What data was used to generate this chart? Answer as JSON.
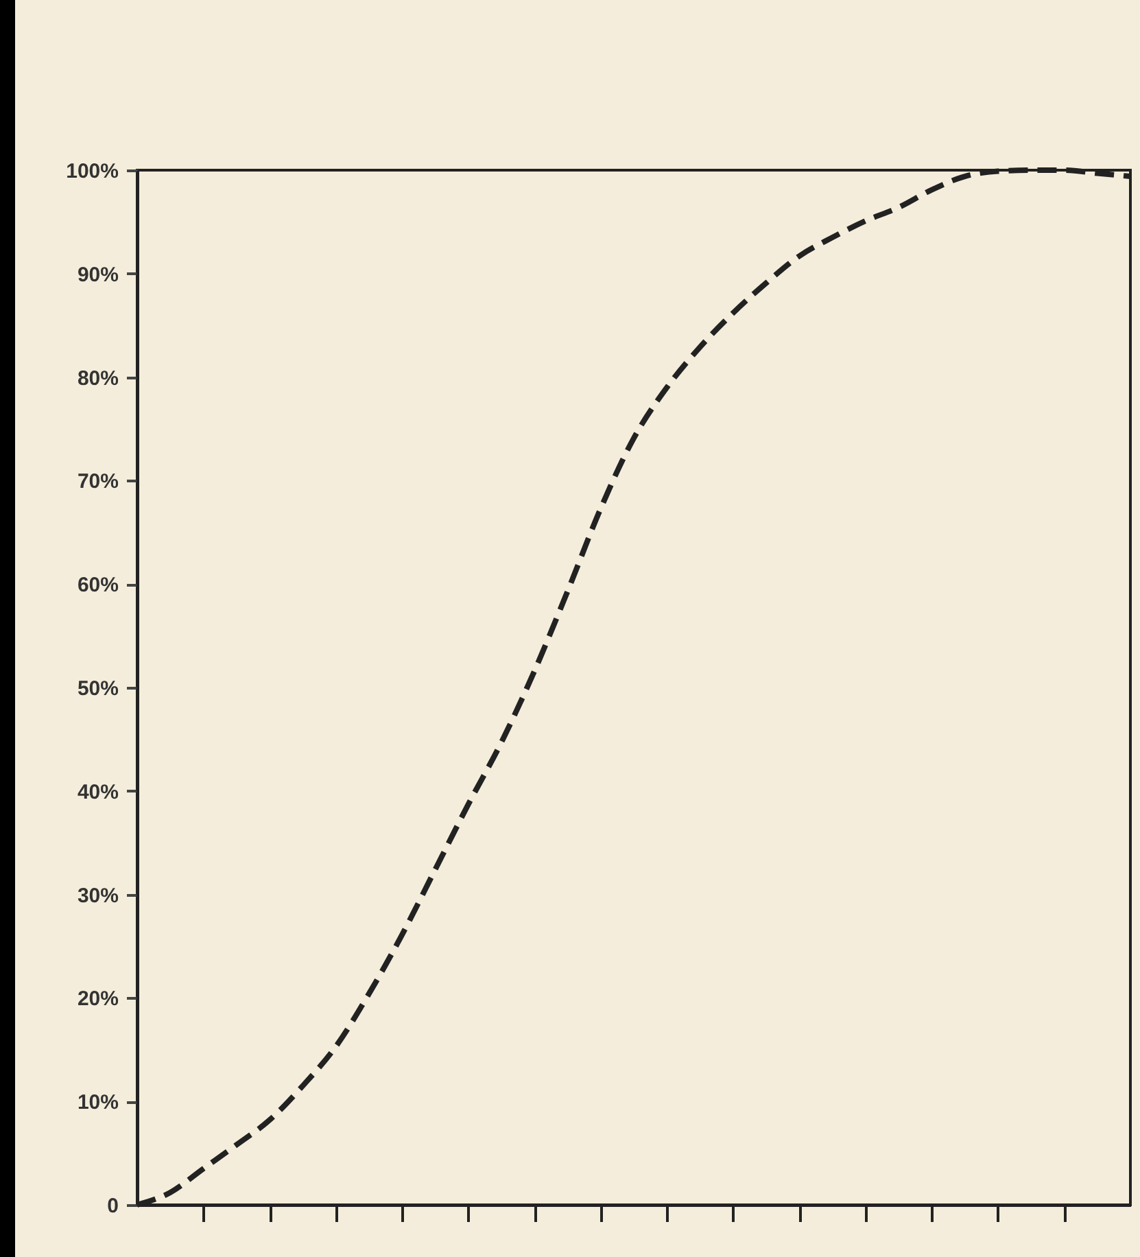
{
  "chart_data": {
    "type": "line",
    "categories": [
      null,
      null,
      null,
      null,
      null,
      null,
      null,
      null,
      null,
      null,
      null,
      null,
      null,
      null,
      null,
      null,
      null,
      null,
      null,
      null,
      null,
      null,
      null,
      null,
      null,
      null,
      null,
      null,
      null,
      null,
      null
    ],
    "series": [
      {
        "color": "#222222",
        "values": [
          0,
          1.2,
          3.5,
          5.8,
          8.2,
          11.5,
          15.3,
          20.4,
          26.1,
          32.4,
          38.7,
          44.7,
          51.6,
          59.3,
          67.3,
          74.1,
          79,
          82.9,
          86.2,
          89.1,
          91.7,
          93.5,
          95.1,
          96.4,
          98.1,
          99.4,
          99.9,
          100,
          100,
          99.7,
          99.4
        ]
      }
    ],
    "ylim": [
      0,
      100
    ],
    "yticks": [
      0,
      {
        "value": 10,
        "label": "10%"
      },
      {
        "value": 20,
        "label": "20%"
      },
      {
        "value": 30,
        "label": "30%"
      },
      {
        "value": 40,
        "label": "40%"
      },
      {
        "value": 50,
        "label": "50%"
      },
      {
        "value": 60,
        "label": "60%"
      },
      {
        "value": 70,
        "label": "70%"
      },
      {
        "value": 80,
        "label": "80%"
      },
      {
        "value": 90,
        "label": "90%"
      },
      {
        "value": 100,
        "label": "100%"
      }
    ],
    "tick_labels": "y",
    "grid": false,
    "marker": "none",
    "line_style": "dashed"
  }
}
